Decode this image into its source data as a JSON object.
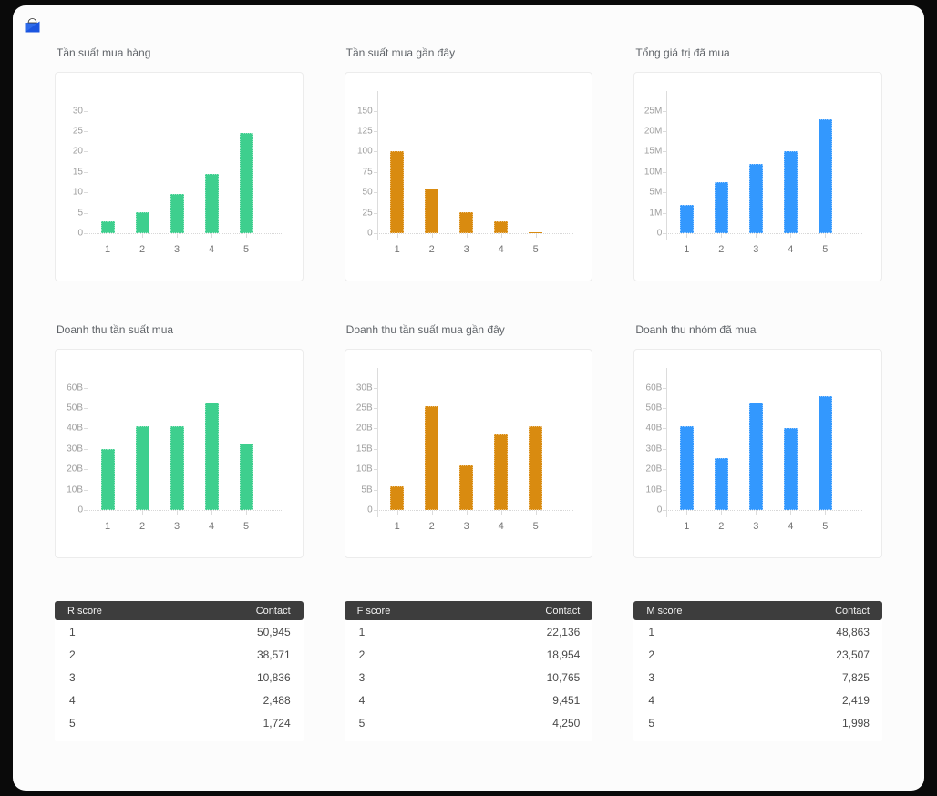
{
  "header": {
    "logo_icon": "open-mail-icon"
  },
  "colors": {
    "green": "#3ecf8e",
    "orange": "#d98b10",
    "blue": "#3398fe",
    "table_header_bg": "#3d3d3d",
    "surface_bg": "#fcfcfc",
    "outer_bg": "#0a0a0a"
  },
  "chart_data": [
    {
      "type": "bar",
      "title": "Tần suất mua hàng",
      "color": "#3ecf8e",
      "categories": [
        "1",
        "2",
        "3",
        "4",
        "5"
      ],
      "values": [
        3,
        5.2,
        9.5,
        14.4,
        24.5
      ],
      "ticks": {
        "labels": [
          "0",
          "5",
          "10",
          "15",
          "20",
          "25",
          "30"
        ],
        "values": [
          0,
          5,
          10,
          15,
          20,
          25,
          30
        ]
      },
      "xlabel": "",
      "ylabel": "",
      "grid": false,
      "legend": "none"
    },
    {
      "type": "bar",
      "title": "Tần suất mua gần đây",
      "color": "#d98b10",
      "categories": [
        "1",
        "2",
        "3",
        "4",
        "5"
      ],
      "values": [
        100,
        55,
        26,
        15,
        1
      ],
      "ticks": {
        "labels": [
          "0",
          "25",
          "50",
          "75",
          "100",
          "125",
          "150"
        ],
        "values": [
          0,
          25,
          50,
          75,
          100,
          125,
          150
        ]
      },
      "xlabel": "",
      "ylabel": "",
      "grid": false,
      "legend": "none"
    },
    {
      "type": "bar",
      "title": "Tổng giá trị đã mua",
      "color": "#3398fe",
      "unit": "M",
      "categories": [
        "1",
        "2",
        "3",
        "4",
        "5"
      ],
      "values": [
        2.6,
        7.6,
        12,
        15,
        23
      ],
      "ticks": {
        "labels": [
          "0",
          "1M",
          "5M",
          "10M",
          "15M",
          "20M",
          "25M"
        ],
        "values": [
          0,
          1,
          5,
          10,
          15,
          20,
          25
        ]
      },
      "xlabel": "",
      "ylabel": "",
      "grid": false,
      "legend": "none"
    },
    {
      "type": "bar",
      "title": "Doanh thu tần suất mua",
      "color": "#3ecf8e",
      "unit": "B",
      "categories": [
        "1",
        "2",
        "3",
        "4",
        "5"
      ],
      "values": [
        30,
        41,
        41,
        52.5,
        32.5
      ],
      "ticks": {
        "labels": [
          "0",
          "10B",
          "20B",
          "30B",
          "40B",
          "50B",
          "60B"
        ],
        "values": [
          0,
          10,
          20,
          30,
          40,
          50,
          60
        ]
      },
      "xlabel": "",
      "ylabel": "",
      "grid": false,
      "legend": "none"
    },
    {
      "type": "bar",
      "title": "Doanh thu tần suất mua gần đây",
      "color": "#d98b10",
      "unit": "B",
      "categories": [
        "1",
        "2",
        "3",
        "4",
        "5"
      ],
      "values": [
        5.8,
        25.5,
        11,
        18.6,
        20.5
      ],
      "ticks": {
        "labels": [
          "0",
          "5B",
          "10B",
          "15B",
          "20B",
          "25B",
          "30B"
        ],
        "values": [
          0,
          5,
          10,
          15,
          20,
          25,
          30
        ]
      },
      "xlabel": "",
      "ylabel": "",
      "grid": false,
      "legend": "none"
    },
    {
      "type": "bar",
      "title": "Doanh thu nhóm đã mua",
      "color": "#3398fe",
      "unit": "B",
      "categories": [
        "1",
        "2",
        "3",
        "4",
        "5"
      ],
      "values": [
        41,
        25.5,
        52.5,
        40,
        56
      ],
      "ticks": {
        "labels": [
          "0",
          "10B",
          "20B",
          "30B",
          "40B",
          "50B",
          "60B"
        ],
        "values": [
          0,
          10,
          20,
          30,
          40,
          50,
          60
        ]
      },
      "xlabel": "",
      "ylabel": "",
      "grid": false,
      "legend": "none"
    },
    {
      "type": "table",
      "columns": [
        "R score",
        "Contact"
      ],
      "rows": [
        [
          "1",
          "50,945"
        ],
        [
          "2",
          "38,571"
        ],
        [
          "3",
          "10,836"
        ],
        [
          "4",
          "2,488"
        ],
        [
          "5",
          "1,724"
        ]
      ]
    },
    {
      "type": "table",
      "columns": [
        "F score",
        "Contact"
      ],
      "rows": [
        [
          "1",
          "22,136"
        ],
        [
          "2",
          "18,954"
        ],
        [
          "3",
          "10,765"
        ],
        [
          "4",
          "9,451"
        ],
        [
          "5",
          "4,250"
        ]
      ]
    },
    {
      "type": "table",
      "columns": [
        "M score",
        "Contact"
      ],
      "rows": [
        [
          "1",
          "48,863"
        ],
        [
          "2",
          "23,507"
        ],
        [
          "3",
          "7,825"
        ],
        [
          "4",
          "2,419"
        ],
        [
          "5",
          "1,998"
        ]
      ]
    }
  ]
}
